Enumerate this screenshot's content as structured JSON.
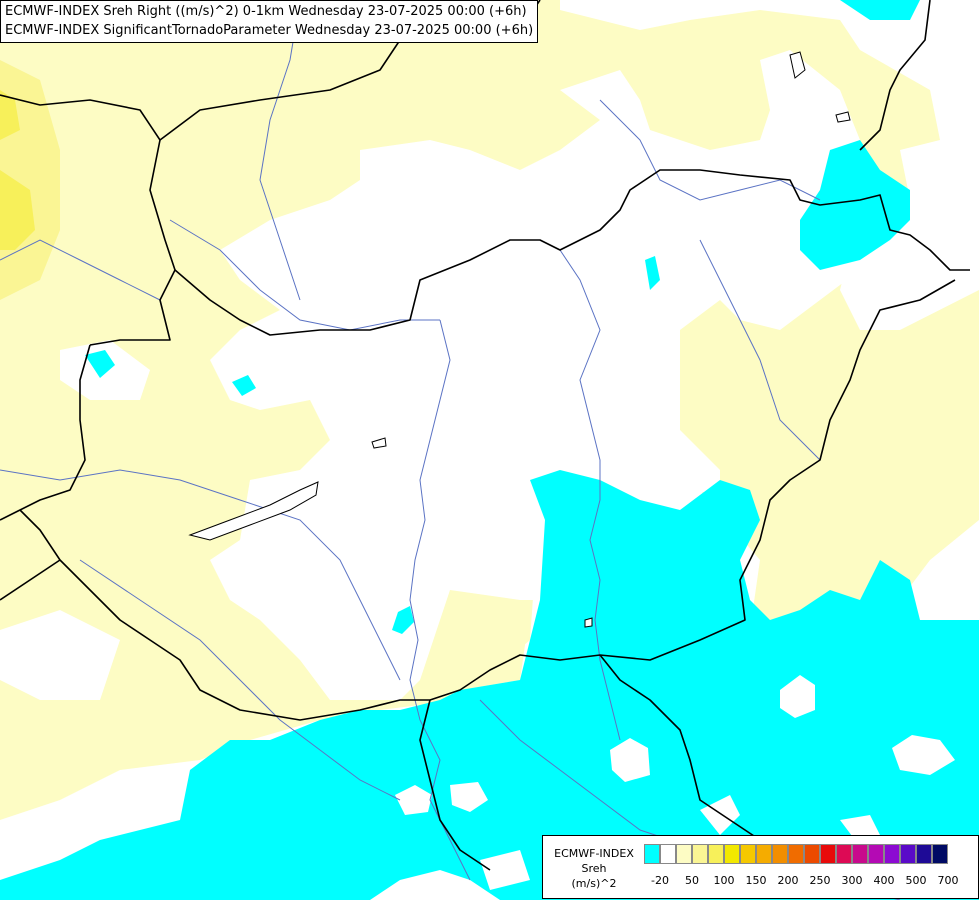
{
  "titles": {
    "line1": "ECMWF-INDEX Sreh Right ((m/s)^2) 0-1km Wednesday 23-07-2025 00:00 (+6h)",
    "line2": "ECMWF-INDEX SignificantTornadoParameter Wednesday 23-07-2025 00:00 (+6h)"
  },
  "colors": {
    "background": "#ffffff",
    "pale_yellow": "#fdfcc4",
    "yellow": "#faf594",
    "bright_yellow": "#f7f05a",
    "cyan": "#00ffff",
    "border": "#000000",
    "river": "#5b73c4"
  },
  "legend": {
    "title_lines": [
      "ECMWF-INDEX",
      "Sreh",
      "(m/s)^2"
    ],
    "swatch_colors": [
      "#00ffff",
      "#ffffff",
      "#fdfcc4",
      "#faf594",
      "#f7f05a",
      "#f2e800",
      "#f5c800",
      "#f5ac00",
      "#f28e00",
      "#f06c00",
      "#ec4a00",
      "#e80a0a",
      "#dd0a55",
      "#c80a8c",
      "#b40ab4",
      "#8c0ad2",
      "#5a0ac8",
      "#1e0a96",
      "#000a64"
    ],
    "ticks": [
      "-20",
      "50",
      "100",
      "150",
      "200",
      "250",
      "300",
      "400",
      "500",
      "700"
    ]
  }
}
